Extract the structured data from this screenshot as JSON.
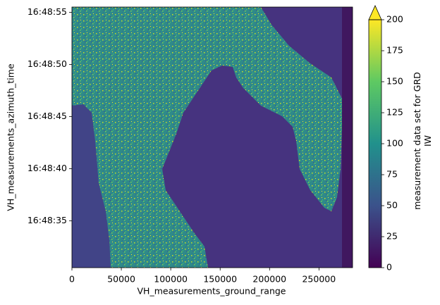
{
  "chart_data": {
    "type": "image",
    "xlabel": "VH_measurements_ground_range",
    "ylabel": "VH_measurements_azimuth_time",
    "xlim": [
      0,
      284000
    ],
    "xticks": [
      0,
      50000,
      100000,
      150000,
      200000,
      250000
    ],
    "ylim": [
      "16:48:30.5",
      "16:48:55.5"
    ],
    "yticks": [
      "16:48:35",
      "16:48:40",
      "16:48:45",
      "16:48:50",
      "16:48:55"
    ],
    "colorbar": {
      "label": "measurement data set for GRD IW",
      "clim": [
        0,
        200
      ],
      "ticks": [
        0,
        25,
        50,
        75,
        100,
        125,
        150,
        175,
        200
      ],
      "extend": "max",
      "colormap": "viridis"
    }
  }
}
